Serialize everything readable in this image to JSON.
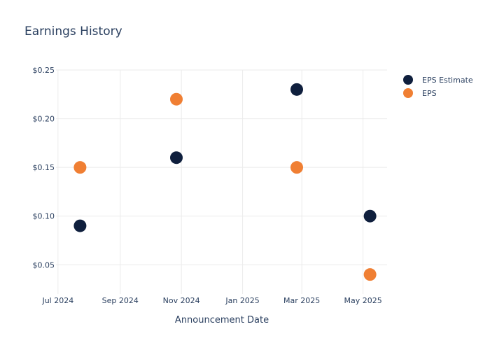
{
  "chart_data": {
    "type": "scatter",
    "title": "Earnings History",
    "xlabel": "Announcement Date",
    "ylabel": "",
    "x_ticks": [
      {
        "date": "2024-07-01",
        "label": "Jul 2024"
      },
      {
        "date": "2024-09-01",
        "label": "Sep 2024"
      },
      {
        "date": "2024-11-01",
        "label": "Nov 2024"
      },
      {
        "date": "2025-01-01",
        "label": "Jan 2025"
      },
      {
        "date": "2025-03-01",
        "label": "Mar 2025"
      },
      {
        "date": "2025-05-01",
        "label": "May 2025"
      }
    ],
    "y_ticks": [
      {
        "value": 0.05,
        "label": "$0.05"
      },
      {
        "value": 0.1,
        "label": "$0.10"
      },
      {
        "value": 0.15,
        "label": "$0.15"
      },
      {
        "value": 0.2,
        "label": "$0.20"
      },
      {
        "value": 0.25,
        "label": "$0.25"
      }
    ],
    "xlim": [
      "2024-06-29",
      "2025-05-25"
    ],
    "ylim": [
      0.02,
      0.25
    ],
    "grid": true,
    "legend_position": "top-right",
    "series": [
      {
        "name": "EPS Estimate",
        "color": "#0f1f3d",
        "points": [
          {
            "x": "2024-07-23",
            "y": 0.09
          },
          {
            "x": "2024-10-27",
            "y": 0.16
          },
          {
            "x": "2025-02-24",
            "y": 0.23
          },
          {
            "x": "2025-05-08",
            "y": 0.1
          }
        ]
      },
      {
        "name": "EPS",
        "color": "#f07f33",
        "points": [
          {
            "x": "2024-07-23",
            "y": 0.15
          },
          {
            "x": "2024-10-27",
            "y": 0.22
          },
          {
            "x": "2025-02-24",
            "y": 0.15
          },
          {
            "x": "2025-05-08",
            "y": 0.04
          }
        ]
      }
    ]
  }
}
